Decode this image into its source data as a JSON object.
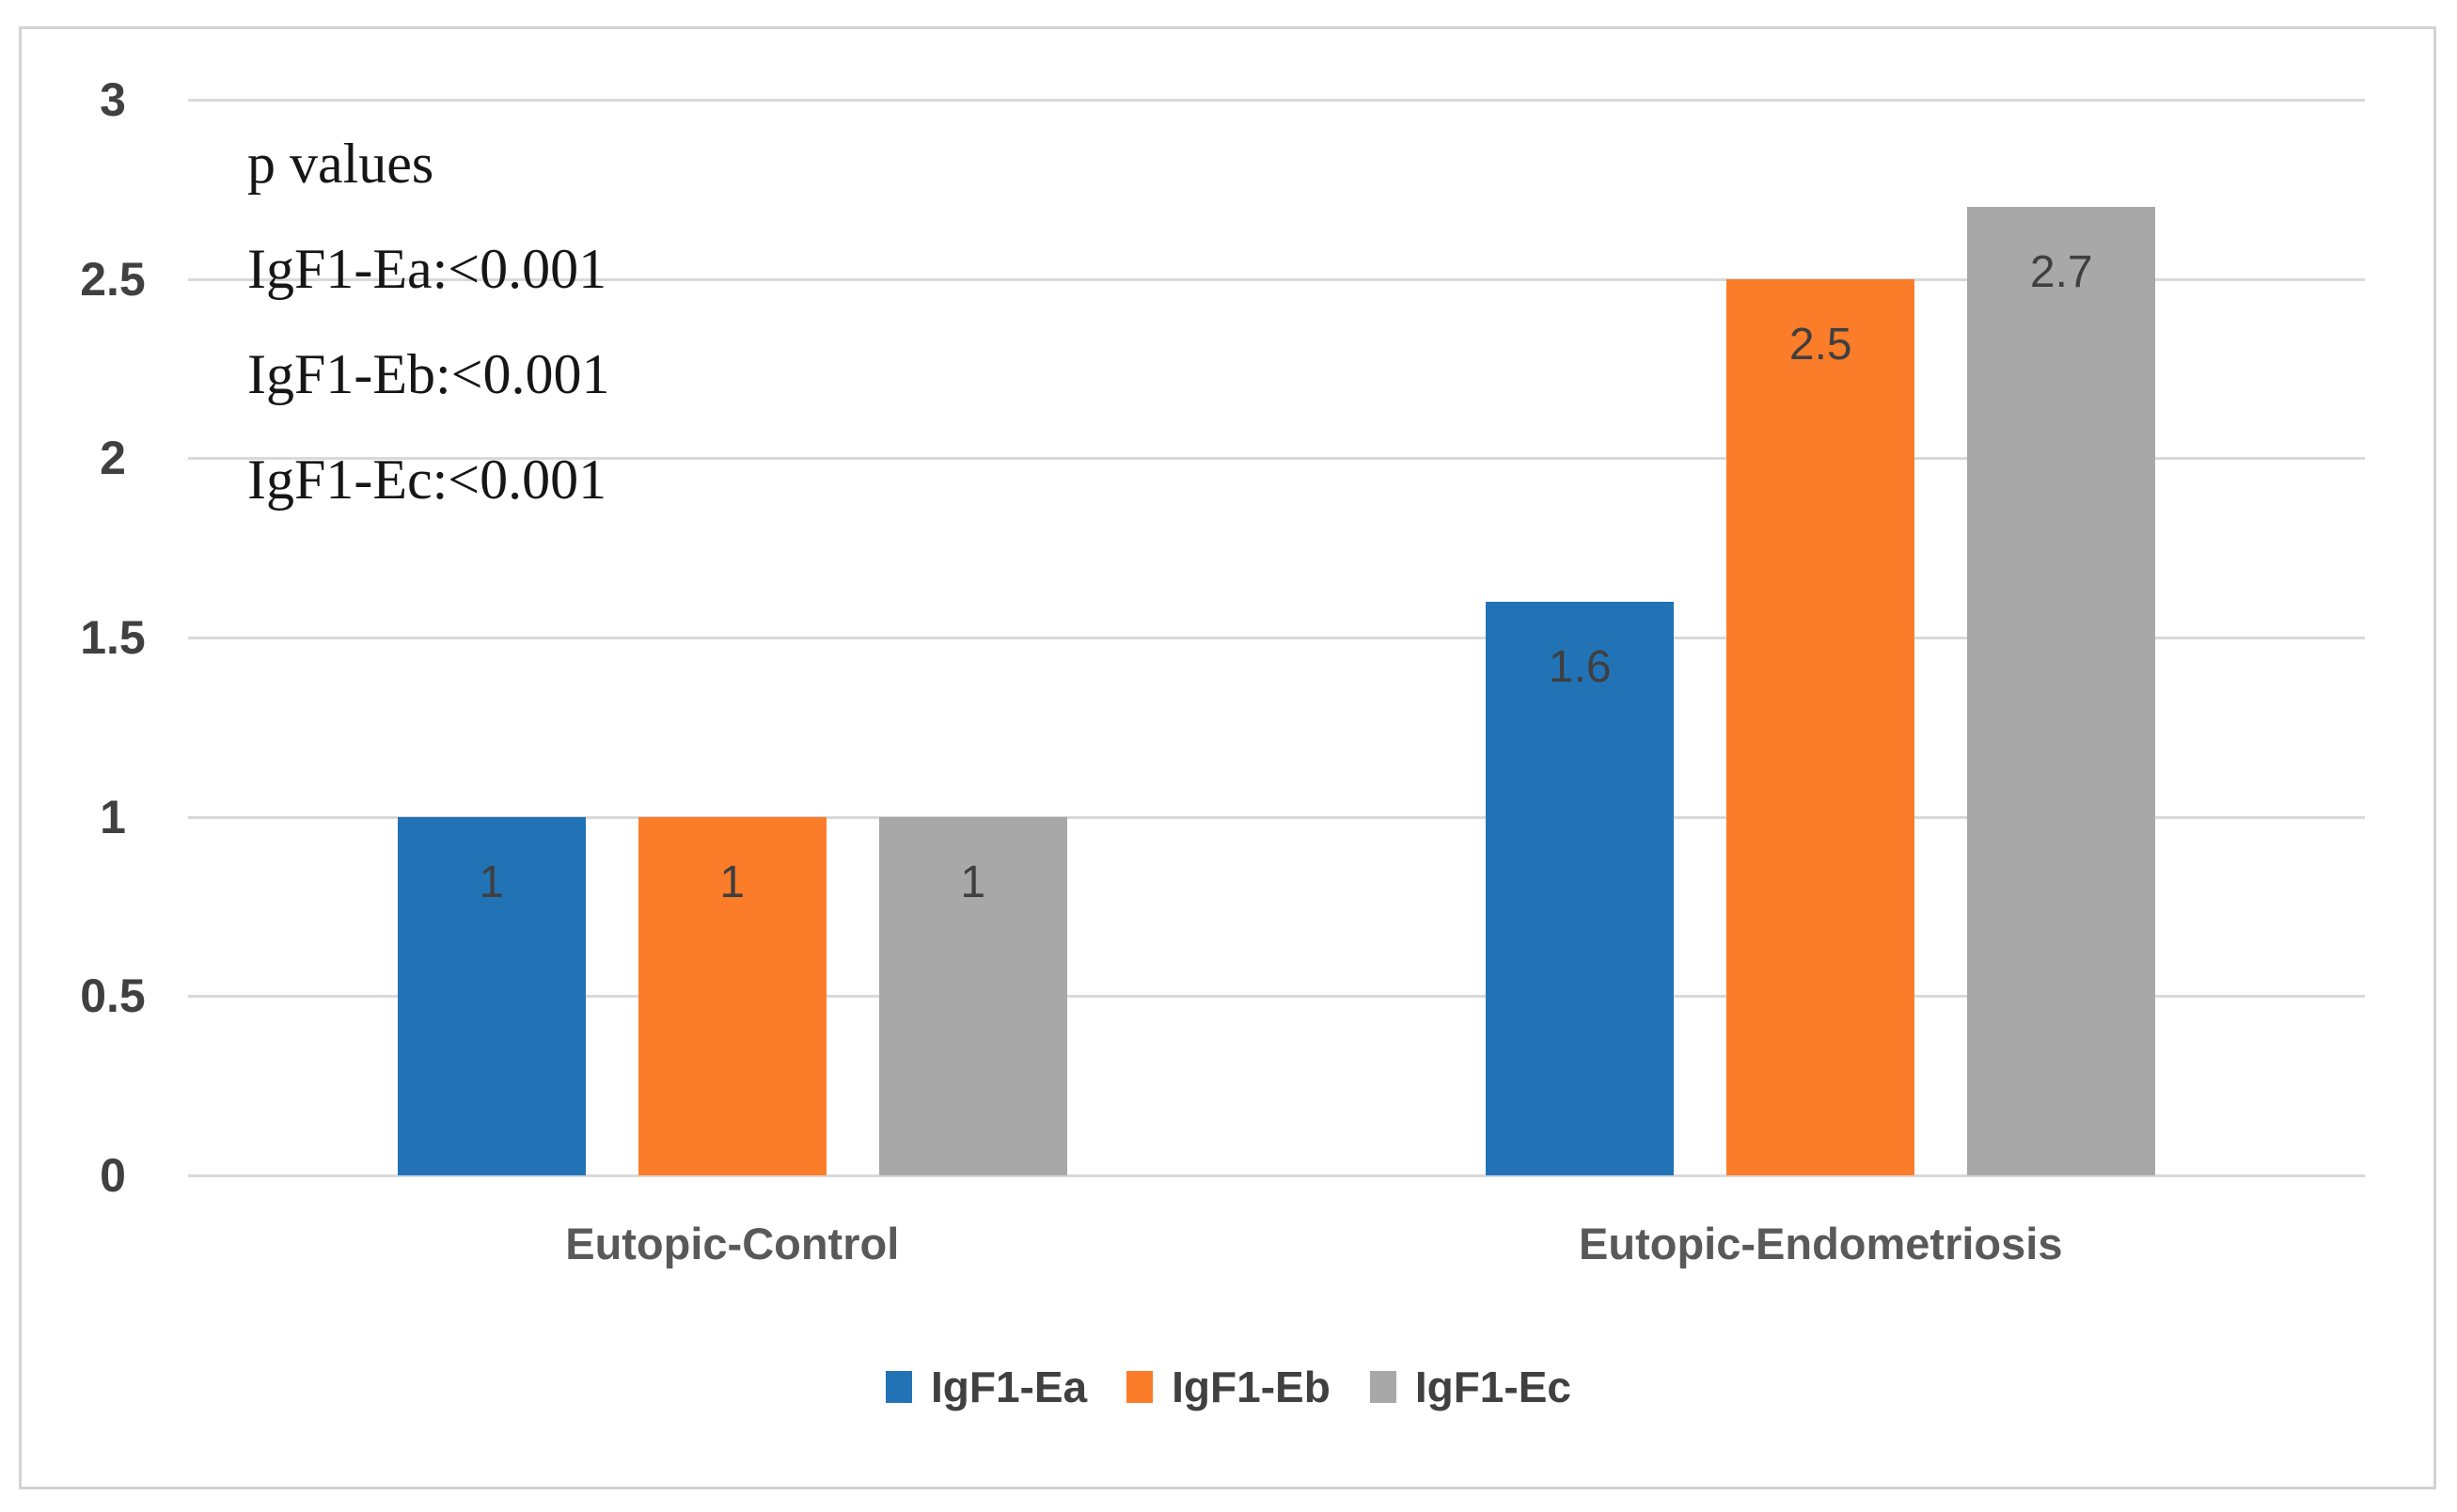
{
  "chart_data": {
    "type": "bar",
    "categories": [
      "Eutopic-Control",
      "Eutopic-Endometriosis"
    ],
    "series": [
      {
        "name": "IgF1-Ea",
        "color": "#2273B6",
        "values": [
          1,
          1.6
        ]
      },
      {
        "name": "IgF1-Eb",
        "color": "#FC7D29",
        "values": [
          1,
          2.5
        ]
      },
      {
        "name": "IgF1-Ec",
        "color": "#A8A8A8",
        "values": [
          1,
          2.7
        ]
      }
    ],
    "title": "",
    "xlabel": "",
    "ylabel": "",
    "ylim": [
      0,
      3
    ],
    "ytick_step": 0.5,
    "grid": true,
    "legend_position": "bottom",
    "annotation": {
      "lines": [
        "p values",
        "IgF1-Ea:<0.001",
        "IgF1-Eb:<0.001",
        "IgF1-Ec:<0.001"
      ]
    }
  },
  "colors": {
    "grid": "#D9D9D9",
    "axis_text": "#404040",
    "category_text": "#595959",
    "annotation_text": "#161616",
    "bar_label_text": "#3F3F3F",
    "border": "#D3D3D3",
    "background": "#FFFFFF"
  }
}
